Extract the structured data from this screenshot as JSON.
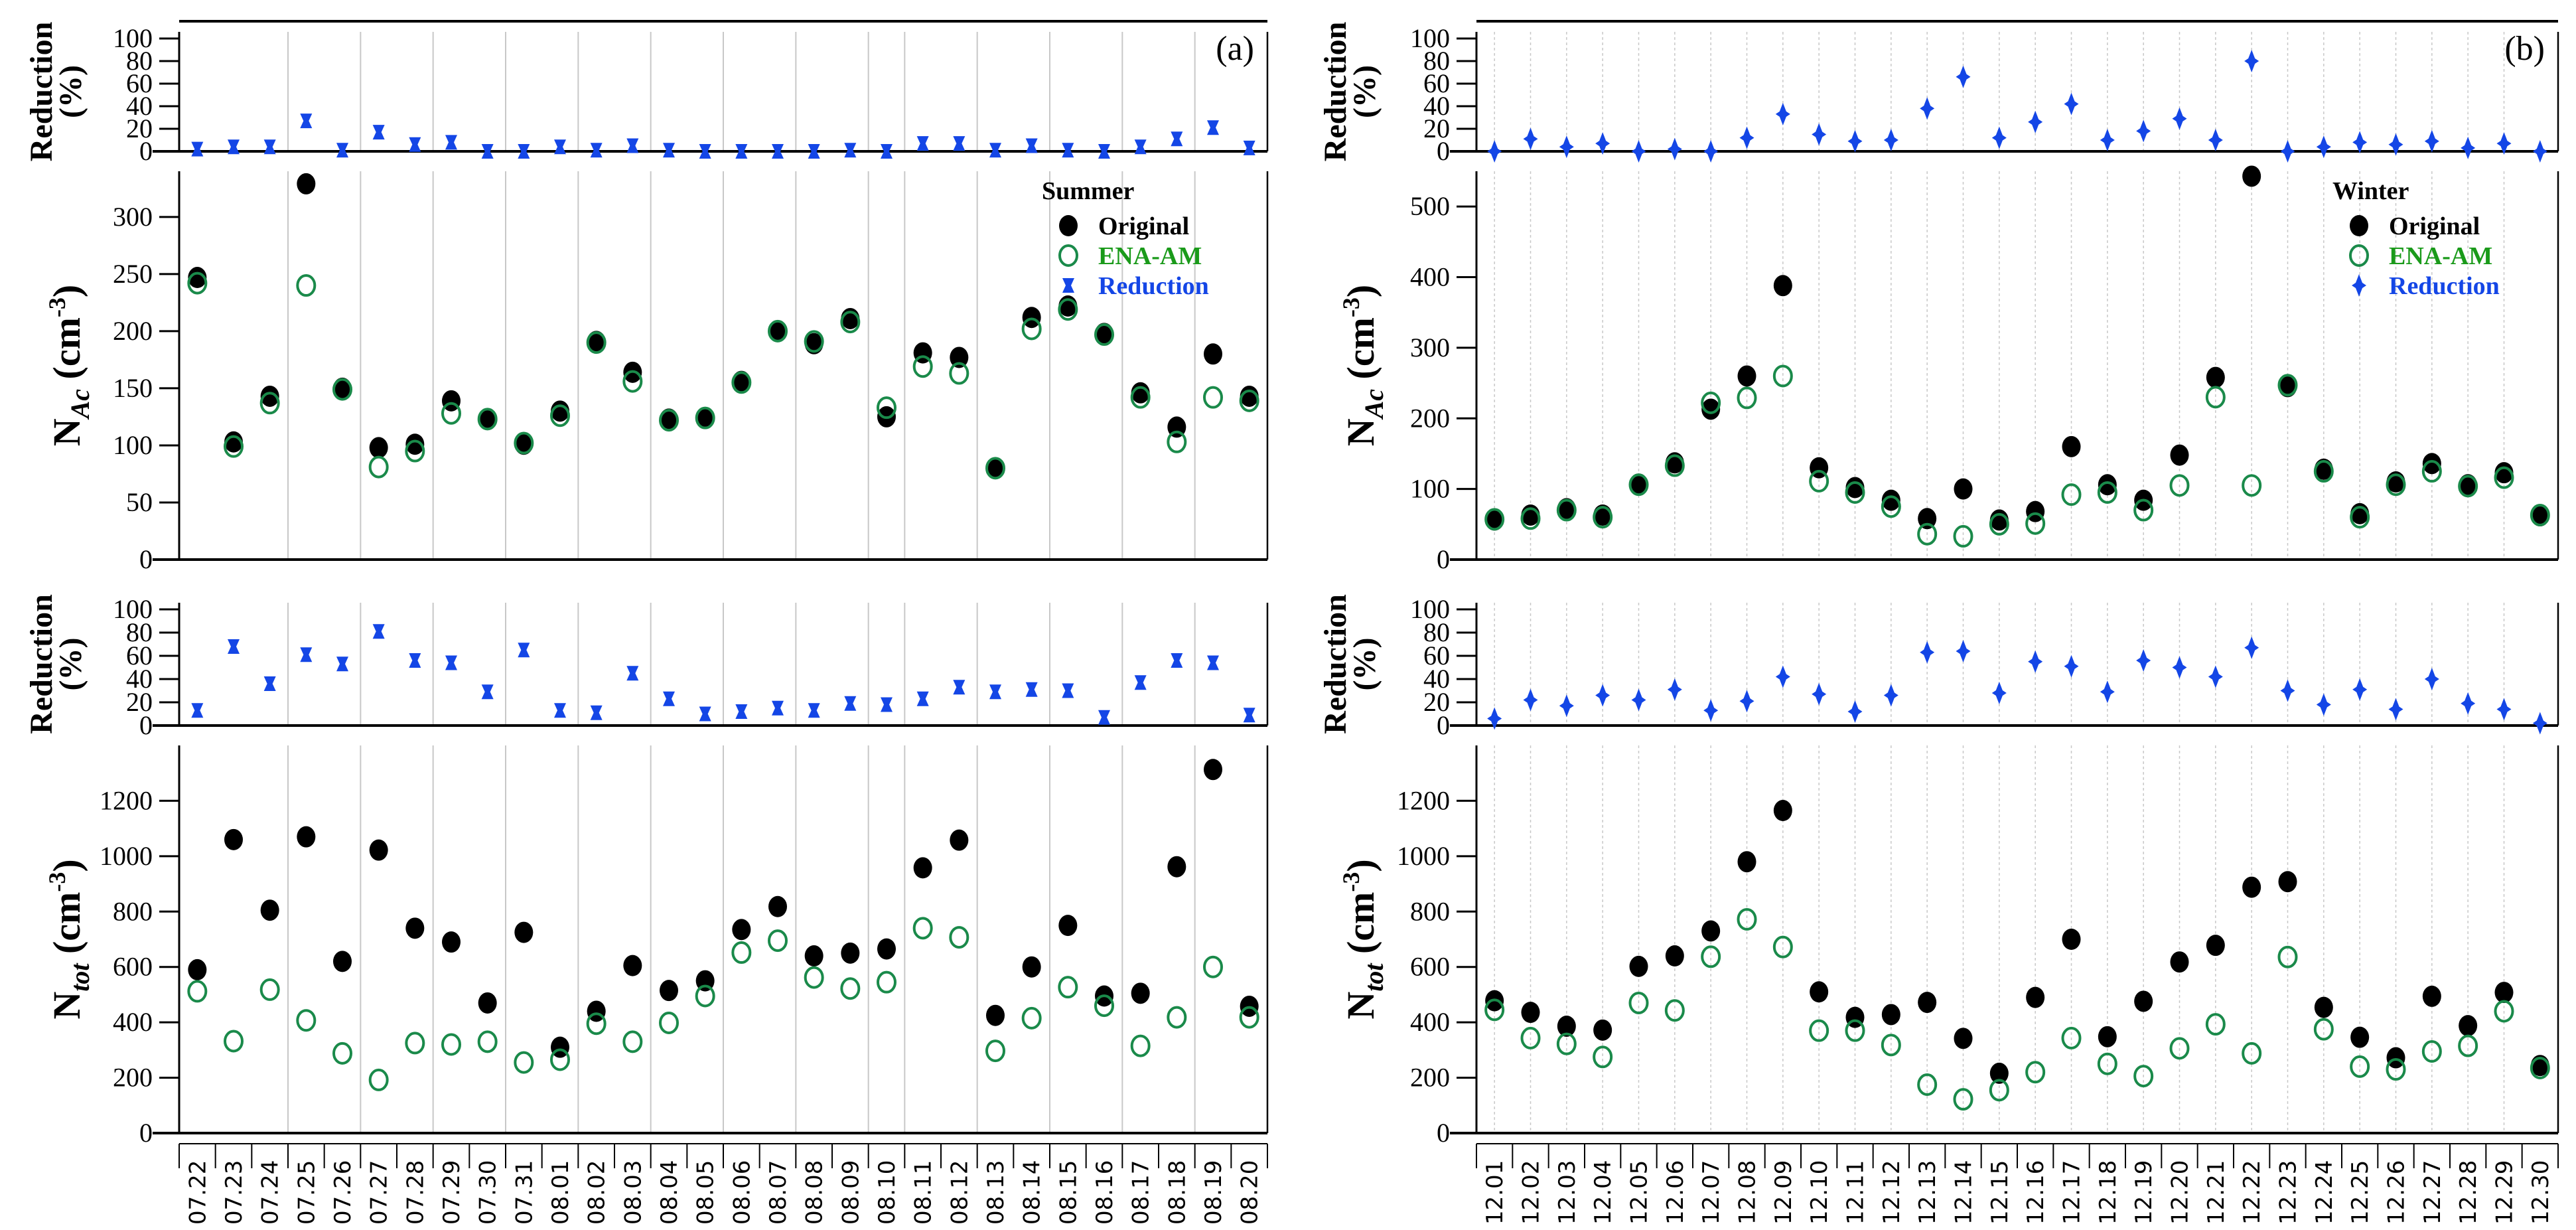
{
  "chart_data": [
    {
      "type": "scatter",
      "panel": "(a)",
      "season": "Summer",
      "categories": [
        "07.22",
        "07.23",
        "07.24",
        "07.25",
        "07.26",
        "07.27",
        "07.28",
        "07.29",
        "07.30",
        "07.31",
        "08.01",
        "08.02",
        "08.03",
        "08.04",
        "08.05",
        "08.06",
        "08.07",
        "08.08",
        "08.09",
        "08.10",
        "08.11",
        "08.12",
        "08.13",
        "08.14",
        "08.15",
        "08.16",
        "08.17",
        "08.18",
        "08.19",
        "08.20"
      ],
      "legend": {
        "title": "Summer",
        "entries": [
          "Original",
          "ENA-AM",
          "Reduction"
        ],
        "placement": "top-right"
      },
      "subplots": [
        {
          "id": "nac_reduction",
          "ylabel": "Reduction (%)",
          "ylim": [
            0,
            100
          ],
          "yticks": [
            0,
            20,
            40,
            60,
            80,
            100
          ],
          "series": [
            {
              "name": "Reduction",
              "values": [
                2,
                4,
                4,
                27,
                1,
                17,
                6,
                8,
                0,
                0,
                4,
                1,
                5,
                1,
                0,
                0,
                0,
                0,
                1,
                0,
                7,
                7,
                1,
                5,
                1,
                0,
                4,
                11,
                21,
                3
              ]
            }
          ]
        },
        {
          "id": "nac",
          "ylabel": "N_Ac (cm^-3)",
          "ylim": [
            0,
            340
          ],
          "yticks": [
            0,
            50,
            100,
            150,
            200,
            250,
            300
          ],
          "series": [
            {
              "name": "Original",
              "values": [
                247,
                103,
                143,
                329,
                150,
                98,
                101,
                139,
                123,
                101,
                130,
                191,
                164,
                123,
                124,
                156,
                200,
                189,
                211,
                125,
                181,
                177,
                80,
                212,
                222,
                198,
                146,
                116,
                180,
                143
              ]
            },
            {
              "name": "ENA-AM",
              "values": [
                242,
                99,
                137,
                240,
                149,
                81,
                95,
                128,
                123,
                102,
                126,
                190,
                156,
                122,
                124,
                155,
                200,
                191,
                208,
                133,
                169,
                163,
                80,
                202,
                219,
                197,
                142,
                103,
                142,
                139
              ]
            }
          ]
        },
        {
          "id": "ntot_reduction",
          "ylabel": "Reduction (%)",
          "ylim": [
            0,
            100
          ],
          "yticks": [
            0,
            20,
            40,
            60,
            80,
            100
          ],
          "series": [
            {
              "name": "Reduction",
              "values": [
                13,
                68,
                36,
                61,
                53,
                81,
                56,
                54,
                29,
                65,
                13,
                11,
                45,
                23,
                10,
                12,
                15,
                13,
                19,
                18,
                23,
                33,
                29,
                31,
                30,
                7,
                37,
                56,
                54,
                9
              ]
            }
          ]
        },
        {
          "id": "ntot",
          "ylabel": "N_tot (cm^-3)",
          "ylim": [
            0,
            1400
          ],
          "yticks": [
            0,
            200,
            400,
            600,
            800,
            1000,
            1200
          ],
          "series": [
            {
              "name": "Original",
              "values": [
                590,
                1060,
                805,
                1070,
                620,
                1022,
                740,
                690,
                470,
                725,
                310,
                440,
                605,
                515,
                550,
                735,
                818,
                640,
                650,
                665,
                958,
                1058,
                425,
                600,
                750,
                495,
                505,
                962,
                1313,
                458
              ]
            },
            {
              "name": "ENA-AM",
              "values": [
                512,
                332,
                518,
                407,
                288,
                192,
                325,
                320,
                330,
                255,
                265,
                395,
                330,
                398,
                495,
                652,
                695,
                562,
                522,
                545,
                740,
                707,
                297,
                415,
                527,
                460,
                315,
                418,
                600,
                418
              ]
            }
          ]
        }
      ]
    },
    {
      "type": "scatter",
      "panel": "(b)",
      "season": "Winter",
      "categories": [
        "12.01",
        "12.02",
        "12.03",
        "12.04",
        "12.05",
        "12.06",
        "12.07",
        "12.08",
        "12.09",
        "12.10",
        "12.11",
        "12.12",
        "12.13",
        "12.14",
        "12.15",
        "12.16",
        "12.17",
        "12.18",
        "12.19",
        "12.20",
        "12.21",
        "12.22",
        "12.23",
        "12.24",
        "12.25",
        "12.26",
        "12.27",
        "12.28",
        "12.29",
        "12.30"
      ],
      "legend": {
        "title": "Winter",
        "entries": [
          "Original",
          "ENA-AM",
          "Reduction"
        ],
        "placement": "top-right"
      },
      "subplots": [
        {
          "id": "nac_reduction",
          "ylabel": "Reduction (%)",
          "ylim": [
            0,
            100
          ],
          "yticks": [
            0,
            20,
            40,
            60,
            80,
            100
          ],
          "series": [
            {
              "name": "Reduction",
              "values": [
                0,
                11,
                4,
                7,
                0,
                2,
                0,
                12,
                33,
                15,
                9,
                10,
                38,
                66,
                12,
                26,
                42,
                10,
                18,
                29,
                10,
                80,
                0,
                4,
                8,
                6,
                9,
                3,
                7,
                0
              ]
            }
          ]
        },
        {
          "id": "nac",
          "ylabel": "N_Ac (cm^-3)",
          "ylim": [
            0,
            550
          ],
          "yticks": [
            0,
            100,
            200,
            300,
            400,
            500
          ],
          "series": [
            {
              "name": "Original",
              "values": [
                56,
                63,
                72,
                63,
                107,
                137,
                213,
                260,
                388,
                130,
                102,
                84,
                58,
                100,
                56,
                68,
                160,
                106,
                84,
                148,
                258,
                543,
                245,
                128,
                65,
                110,
                136,
                106,
                123,
                62
              ]
            },
            {
              "name": "ENA-AM",
              "values": [
                57,
                58,
                70,
                60,
                106,
                133,
                222,
                229,
                260,
                111,
                95,
                75,
                36,
                33,
                50,
                51,
                92,
                95,
                70,
                105,
                230,
                105,
                247,
                125,
                60,
                106,
                125,
                104,
                116,
                63
              ]
            }
          ]
        },
        {
          "id": "ntot_reduction",
          "ylabel": "Reduction (%)",
          "ylim": [
            0,
            100
          ],
          "yticks": [
            0,
            20,
            40,
            60,
            80,
            100
          ],
          "series": [
            {
              "name": "Reduction",
              "values": [
                6,
                22,
                17,
                26,
                22,
                31,
                13,
                21,
                42,
                27,
                12,
                26,
                63,
                64,
                28,
                55,
                51,
                29,
                56,
                50,
                42,
                67,
                30,
                18,
                31,
                14,
                40,
                19,
                14,
                2
              ]
            }
          ]
        },
        {
          "id": "ntot",
          "ylabel": "N_tot (cm^-3)",
          "ylim": [
            0,
            1400
          ],
          "yticks": [
            0,
            200,
            400,
            600,
            800,
            1000,
            1200
          ],
          "series": [
            {
              "name": "Original",
              "values": [
                478,
                436,
                386,
                372,
                602,
                640,
                730,
                980,
                1165,
                510,
                418,
                428,
                472,
                342,
                216,
                490,
                700,
                348,
                476,
                618,
                678,
                888,
                908,
                454,
                346,
                272,
                494,
                388,
                508,
                244
              ]
            },
            {
              "name": "ENA-AM",
              "values": [
                445,
                343,
                322,
                275,
                470,
                443,
                637,
                772,
                672,
                370,
                370,
                318,
                175,
                122,
                155,
                220,
                343,
                250,
                206,
                306,
                393,
                288,
                636,
                375,
                240,
                230,
                295,
                315,
                440,
                235
              ]
            }
          ]
        }
      ]
    }
  ],
  "labels": {
    "reduction_line1": "Reduction",
    "reduction_line2": "(%)",
    "nac_main": "N",
    "nac_sub": "Ac",
    "ntot_main": "N",
    "ntot_sub": "tot",
    "unit_open": " (cm",
    "unit_exp": "-3",
    "unit_close": ")"
  },
  "colors": {
    "original": "#000000",
    "ena_am": "#1a8a4a",
    "reduction": "#1446e6",
    "legend_ena_text": "#1a9a1a",
    "legend_red_text": "#1446e6",
    "grid": "#c8c8c8"
  }
}
